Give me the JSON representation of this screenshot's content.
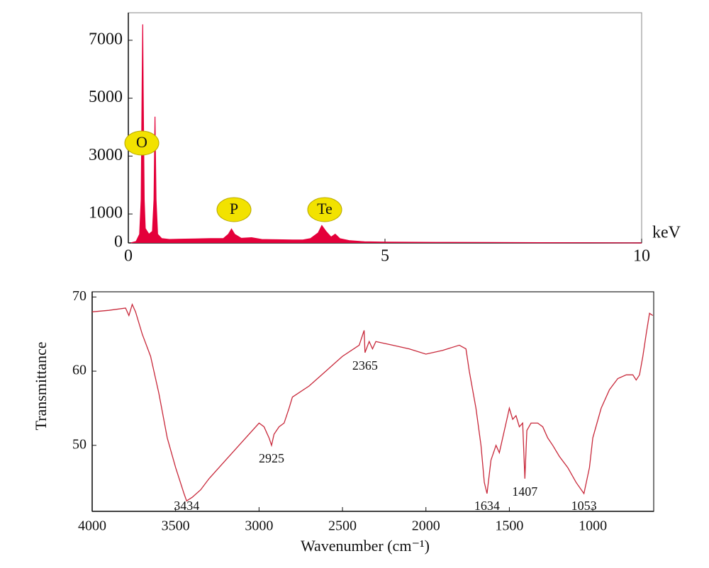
{
  "chart_data": [
    {
      "type": "area",
      "color": "#e4003a",
      "x_label": "keV",
      "xlim": [
        0,
        10
      ],
      "xticks": [
        0,
        5,
        10
      ],
      "ylim": [
        0,
        7950
      ],
      "yticks": [
        0,
        1000,
        3000,
        5000,
        7000
      ],
      "annotations": [
        "O",
        "P",
        "Te"
      ],
      "annotation_color": "#f2e200",
      "x": [
        0.05,
        0.15,
        0.22,
        0.25,
        0.27,
        0.28,
        0.29,
        0.31,
        0.33,
        0.4,
        0.47,
        0.5,
        0.52,
        0.54,
        0.57,
        0.65,
        0.8,
        1.0,
        1.3,
        1.6,
        1.85,
        1.95,
        2.01,
        2.07,
        2.2,
        2.4,
        2.6,
        2.9,
        3.2,
        3.4,
        3.55,
        3.7,
        3.77,
        3.85,
        3.95,
        4.03,
        4.12,
        4.3,
        4.6,
        5.0,
        6.0,
        7.0,
        8.0,
        9.0,
        10
      ],
      "values": [
        0,
        50,
        300,
        1500,
        5600,
        7550,
        5200,
        1500,
        500,
        300,
        400,
        1500,
        4360,
        1500,
        300,
        150,
        120,
        130,
        140,
        150,
        150,
        300,
        480,
        300,
        160,
        180,
        120,
        110,
        100,
        100,
        150,
        350,
        600,
        400,
        200,
        300,
        150,
        80,
        40,
        30,
        20,
        15,
        10,
        8,
        0
      ]
    },
    {
      "type": "line",
      "color": "#c8283a",
      "x_label": "Wavenumber (cm⁻¹)",
      "y_label": "Transmittance",
      "xlim": [
        4000,
        635
      ],
      "xticks": [
        4000,
        3500,
        3000,
        2500,
        2000,
        1500,
        1000
      ],
      "ylim": [
        41.1,
        70.7
      ],
      "yticks": [
        50,
        60,
        70
      ],
      "peaks": [
        3434,
        2925,
        2365,
        1634,
        1407,
        1053
      ],
      "x": [
        4000,
        3900,
        3800,
        3780,
        3760,
        3740,
        3700,
        3650,
        3600,
        3550,
        3500,
        3450,
        3434,
        3400,
        3350,
        3300,
        3200,
        3100,
        3000,
        2970,
        2940,
        2925,
        2910,
        2880,
        2850,
        2820,
        2800,
        2700,
        2600,
        2500,
        2400,
        2370,
        2365,
        2340,
        2320,
        2300,
        2200,
        2100,
        2000,
        1900,
        1800,
        1760,
        1740,
        1700,
        1670,
        1650,
        1634,
        1610,
        1580,
        1560,
        1540,
        1510,
        1500,
        1480,
        1460,
        1440,
        1420,
        1407,
        1395,
        1370,
        1330,
        1300,
        1270,
        1240,
        1200,
        1150,
        1100,
        1053,
        1020,
        1000,
        950,
        900,
        850,
        800,
        760,
        740,
        720,
        700,
        680,
        660,
        640
      ],
      "values": [
        68,
        68.2,
        68.5,
        67.5,
        69,
        68,
        65,
        62,
        57,
        51,
        47,
        43.5,
        42.5,
        43,
        44,
        45.5,
        48,
        50.5,
        53,
        52.5,
        51,
        50,
        51.5,
        52.5,
        53,
        55,
        56.5,
        58,
        60,
        62,
        63.5,
        65.5,
        62.5,
        64,
        63,
        64,
        63.5,
        63,
        62.3,
        62.8,
        63.5,
        63,
        60,
        55,
        50,
        45,
        43.5,
        48,
        50,
        49,
        51,
        54,
        55,
        53.5,
        54,
        52.5,
        53,
        45.5,
        52,
        53,
        53,
        52.5,
        51,
        50,
        48.5,
        47,
        45,
        43.5,
        47,
        51,
        55,
        57.5,
        59,
        59.5,
        59.5,
        58.8,
        59.5,
        62,
        65,
        67.8,
        67.5
      ]
    }
  ]
}
